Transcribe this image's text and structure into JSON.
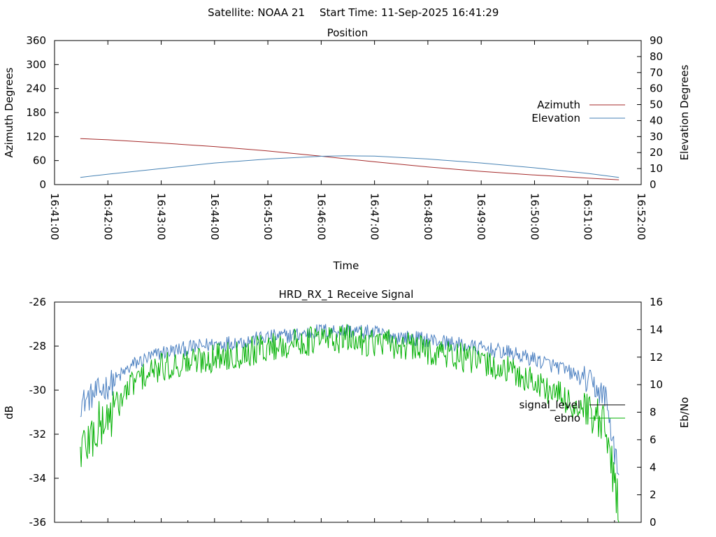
{
  "header": {
    "satellite_text": "Satellite: NOAA 21",
    "start_time_text": "Start Time: 11-Sep-2025 16:41:29"
  },
  "chart_data": [
    {
      "type": "line",
      "title": "Position",
      "xlabel": "Time",
      "ylabel": "Azimuth Degrees",
      "y2label": "Elevation Degrees",
      "xlim": [
        "16:41:00",
        "16:52:00"
      ],
      "ylim": [
        0,
        360
      ],
      "y2lim": [
        0,
        90
      ],
      "x_ticks": [
        "16:41:00",
        "16:42:00",
        "16:43:00",
        "16:44:00",
        "16:45:00",
        "16:46:00",
        "16:47:00",
        "16:48:00",
        "16:49:00",
        "16:50:00",
        "16:51:00",
        "16:52:00"
      ],
      "y_ticks": [
        "0",
        "60",
        "120",
        "180",
        "240",
        "300",
        "360"
      ],
      "y2_ticks": [
        "0",
        "10",
        "20",
        "30",
        "40",
        "50",
        "60",
        "70",
        "80",
        "90"
      ],
      "legend_position": "right",
      "grid": false,
      "series": [
        {
          "name": "Azimuth",
          "axis": "left",
          "color": "#a52a2a",
          "x": [
            "16:41:29",
            "16:42:00",
            "16:43:00",
            "16:44:00",
            "16:45:00",
            "16:46:00",
            "16:47:00",
            "16:48:00",
            "16:49:00",
            "16:50:00",
            "16:51:00",
            "16:51:35"
          ],
          "values": [
            115,
            112,
            104,
            95,
            84,
            71,
            57,
            44,
            33,
            24,
            16,
            12
          ]
        },
        {
          "name": "Elevation",
          "axis": "right",
          "color": "#4682b4",
          "x": [
            "16:41:29",
            "16:42:00",
            "16:43:00",
            "16:44:00",
            "16:45:00",
            "16:46:00",
            "16:46:30",
            "16:47:00",
            "16:48:00",
            "16:49:00",
            "16:50:00",
            "16:51:00",
            "16:51:35"
          ],
          "values": [
            4.5,
            6.5,
            10,
            13.5,
            16,
            17.7,
            18,
            17.8,
            16,
            13.5,
            10.5,
            7,
            4.5
          ]
        }
      ]
    },
    {
      "type": "line",
      "title": "HRD_RX_1 Receive Signal",
      "ylabel": "dB",
      "y2label": "Eb/No",
      "ylim": [
        -36,
        -26
      ],
      "y2lim": [
        0,
        16
      ],
      "y_ticks": [
        "-26",
        "-28",
        "-30",
        "-32",
        "-34",
        "-36"
      ],
      "y2_ticks": [
        "16",
        "14",
        "12",
        "10",
        "8",
        "6",
        "4",
        "2",
        "0"
      ],
      "legend_position": "right",
      "grid": false,
      "series": [
        {
          "name": "signal_level",
          "axis": "left",
          "color": "#4a7fc0",
          "x": [
            "16:41:29",
            "16:42:00",
            "16:42:30",
            "16:43:00",
            "16:43:30",
            "16:44:00",
            "16:44:30",
            "16:45:00",
            "16:45:30",
            "16:46:00",
            "16:46:30",
            "16:47:00",
            "16:47:30",
            "16:48:00",
            "16:48:30",
            "16:49:00",
            "16:49:30",
            "16:50:00",
            "16:50:30",
            "16:51:00",
            "16:51:20",
            "16:51:35"
          ],
          "values": [
            -30.6,
            -29.8,
            -28.8,
            -28.3,
            -28.1,
            -27.9,
            -27.8,
            -27.6,
            -27.5,
            -27.3,
            -27.3,
            -27.4,
            -27.6,
            -27.7,
            -27.9,
            -28.1,
            -28.3,
            -28.6,
            -29.0,
            -29.6,
            -30.3,
            -34.0
          ]
        },
        {
          "name": "ebno",
          "axis": "right",
          "color": "#00b000",
          "x": [
            "16:41:29",
            "16:42:00",
            "16:42:30",
            "16:43:00",
            "16:43:30",
            "16:44:00",
            "16:44:30",
            "16:45:00",
            "16:45:30",
            "16:46:00",
            "16:46:30",
            "16:47:00",
            "16:47:30",
            "16:48:00",
            "16:48:30",
            "16:49:00",
            "16:49:30",
            "16:50:00",
            "16:50:30",
            "16:51:00",
            "16:51:20",
            "16:51:35"
          ],
          "values": [
            5.3,
            7.6,
            10.3,
            11.2,
            11.6,
            12.0,
            12.3,
            12.7,
            13.0,
            13.3,
            13.3,
            13.1,
            12.8,
            12.5,
            12.1,
            11.6,
            11.0,
            10.2,
            9.1,
            7.7,
            6.5,
            1.2
          ]
        }
      ]
    }
  ]
}
